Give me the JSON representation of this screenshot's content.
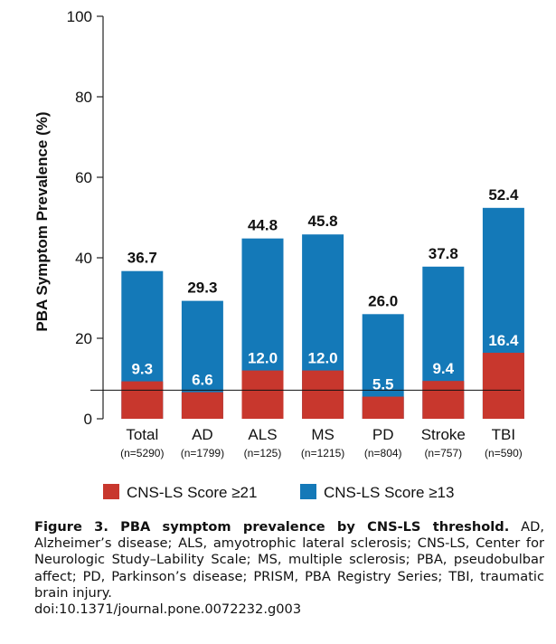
{
  "chart_data": {
    "type": "bar",
    "ylabel": "PBA Symptom Prevalence (%)",
    "ylim": [
      0,
      100
    ],
    "yticks": [
      0,
      20,
      40,
      60,
      80,
      100
    ],
    "categories": [
      "Total",
      "AD",
      "ALS",
      "MS",
      "PD",
      "Stroke",
      "TBI"
    ],
    "sample_sizes": [
      "(n=5290)",
      "(n=1799)",
      "(n=125)",
      "(n=1215)",
      "(n=804)",
      "(n=757)",
      "(n=590)"
    ],
    "series": [
      {
        "name": "CNS-LS Score ≥21",
        "color": "#c8372d",
        "values": [
          9.3,
          6.6,
          12.0,
          12.0,
          5.5,
          9.4,
          16.4
        ],
        "labels": [
          "9.3",
          "6.6",
          "12.0",
          "12.0",
          "5.5",
          "9.4",
          "16.4"
        ]
      },
      {
        "name": "CNS-LS Score ≥13",
        "color": "#1479b8",
        "values": [
          36.7,
          29.3,
          44.8,
          45.8,
          26.0,
          37.8,
          52.4
        ],
        "labels": [
          "36.7",
          "29.3",
          "44.8",
          "45.8",
          "26.0",
          "37.8",
          "52.4"
        ]
      }
    ],
    "reference_line": 7.1,
    "grid": false,
    "legend_position": "bottom"
  },
  "caption": {
    "title": "Figure 3. PBA symptom prevalence by CNS-LS threshold.",
    "text": "AD, Alzheimer’s disease; ALS, amyotrophic lateral sclerosis; CNS-LS, Center for Neurologic Study–Lability Scale; MS, multiple sclerosis; PBA, pseudobulbar affect; PD, Parkinson’s disease; PRISM, PBA Registry Series; TBI, traumatic brain injury.",
    "doi": "doi:10.1371/journal.pone.0072232.g003"
  }
}
